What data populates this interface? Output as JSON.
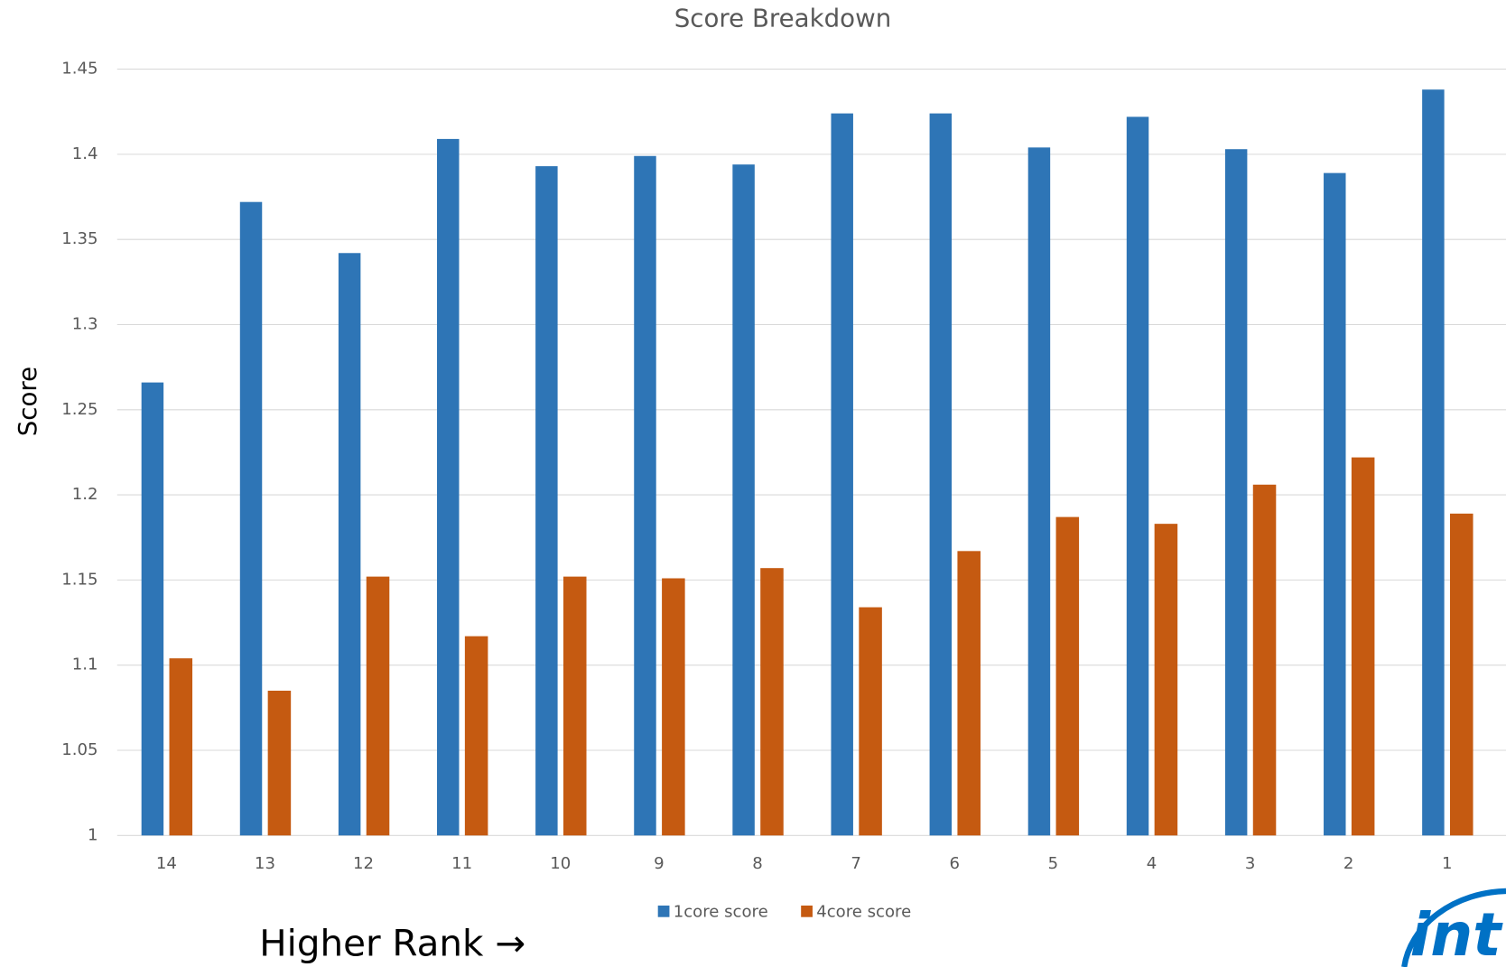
{
  "chart_data": {
    "type": "bar",
    "title": "Score Breakdown",
    "ylabel": "Score",
    "categories": [
      "14",
      "13",
      "12",
      "11",
      "10",
      "9",
      "8",
      "7",
      "6",
      "5",
      "4",
      "3",
      "2",
      "1"
    ],
    "series": [
      {
        "name": "1core score",
        "color": "#2e75b6",
        "values": [
          1.266,
          1.372,
          1.342,
          1.409,
          1.393,
          1.399,
          1.394,
          1.424,
          1.424,
          1.404,
          1.422,
          1.403,
          1.389,
          1.438
        ]
      },
      {
        "name": "4core score",
        "color": "#c55a11",
        "values": [
          1.104,
          1.085,
          1.152,
          1.117,
          1.152,
          1.151,
          1.157,
          1.134,
          1.167,
          1.187,
          1.183,
          1.206,
          1.222,
          1.189
        ]
      }
    ],
    "ylim": [
      1,
      1.45
    ],
    "yticks": [
      1,
      1.05,
      1.1,
      1.15,
      1.2,
      1.25,
      1.3,
      1.35,
      1.4,
      1.45
    ],
    "grid": true,
    "legend": "bottom"
  },
  "annotation": "Higher Rank →",
  "logo_text": "int"
}
